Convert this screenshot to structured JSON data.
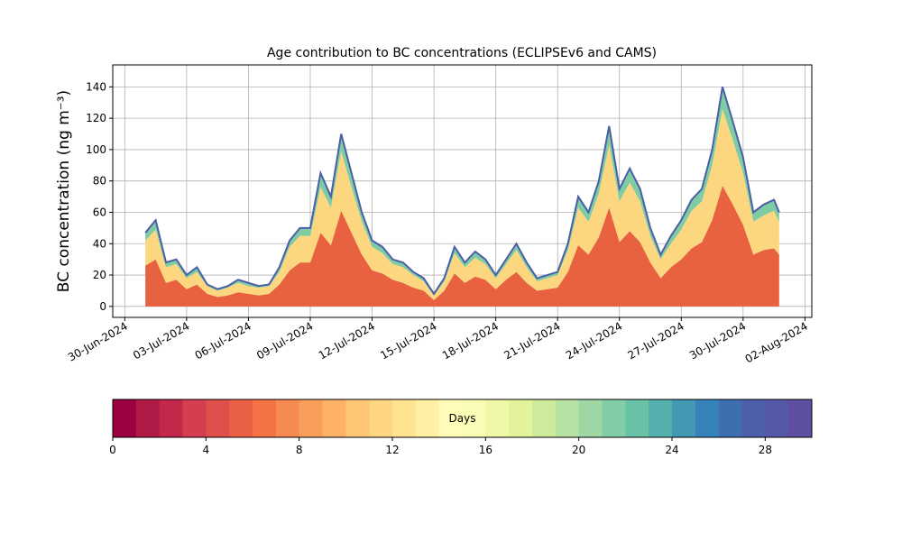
{
  "chart_data": {
    "type": "stacked_area",
    "title": "Age contribution to BC concentrations (ECLIPSEv6 and CAMS)",
    "y_label": "BC concentration (ng m⁻³)",
    "x": [
      "2024-07-01T00:00",
      "2024-07-01T12:00",
      "2024-07-02T00:00",
      "2024-07-02T12:00",
      "2024-07-03T00:00",
      "2024-07-03T12:00",
      "2024-07-04T00:00",
      "2024-07-04T12:00",
      "2024-07-05T00:00",
      "2024-07-05T12:00",
      "2024-07-06T00:00",
      "2024-07-06T12:00",
      "2024-07-07T00:00",
      "2024-07-07T12:00",
      "2024-07-08T00:00",
      "2024-07-08T12:00",
      "2024-07-09T00:00",
      "2024-07-09T12:00",
      "2024-07-10T00:00",
      "2024-07-10T12:00",
      "2024-07-11T00:00",
      "2024-07-11T12:00",
      "2024-07-12T00:00",
      "2024-07-12T12:00",
      "2024-07-13T00:00",
      "2024-07-13T12:00",
      "2024-07-14T00:00",
      "2024-07-14T12:00",
      "2024-07-15T00:00",
      "2024-07-15T12:00",
      "2024-07-16T00:00",
      "2024-07-16T12:00",
      "2024-07-17T00:00",
      "2024-07-17T12:00",
      "2024-07-18T00:00",
      "2024-07-18T12:00",
      "2024-07-19T00:00",
      "2024-07-19T12:00",
      "2024-07-20T00:00",
      "2024-07-20T12:00",
      "2024-07-21T00:00",
      "2024-07-21T12:00",
      "2024-07-22T00:00",
      "2024-07-22T12:00",
      "2024-07-23T00:00",
      "2024-07-23T12:00",
      "2024-07-24T00:00",
      "2024-07-24T12:00",
      "2024-07-25T00:00",
      "2024-07-25T12:00",
      "2024-07-26T00:00",
      "2024-07-26T12:00",
      "2024-07-27T00:00",
      "2024-07-27T12:00",
      "2024-07-28T00:00",
      "2024-07-28T12:00",
      "2024-07-29T00:00",
      "2024-07-29T12:00",
      "2024-07-30T00:00",
      "2024-07-30T12:00",
      "2024-07-31T00:00",
      "2024-07-31T12:00",
      "2024-07-31T18:00"
    ],
    "series": [
      {
        "color": "#e8623f",
        "values": [
          26,
          30,
          15,
          17,
          11,
          14,
          8,
          6,
          7,
          9,
          8,
          7,
          8,
          14,
          23,
          28,
          28,
          47,
          39,
          61,
          47,
          33,
          23,
          21,
          17,
          15,
          12,
          10,
          4,
          10,
          21,
          15,
          19,
          17,
          11,
          17,
          22,
          15,
          10,
          11,
          12,
          22,
          39,
          33,
          44,
          63,
          41,
          48,
          41,
          28,
          18,
          25,
          30,
          37,
          41,
          55,
          77,
          65,
          52,
          33,
          36,
          37,
          33
        ]
      },
      {
        "color": "#fdd680",
        "values": [
          16,
          19,
          10,
          10,
          7,
          8,
          5,
          4,
          5,
          6,
          5,
          5,
          5,
          8,
          15,
          17,
          17,
          29,
          24,
          38,
          29,
          21,
          15,
          13,
          10,
          10,
          8,
          6,
          3,
          6,
          13,
          10,
          12,
          10,
          7,
          10,
          14,
          10,
          6,
          7,
          8,
          14,
          24,
          21,
          28,
          40,
          26,
          31,
          26,
          17,
          12,
          15,
          19,
          24,
          26,
          35,
          49,
          41,
          33,
          21,
          22,
          24,
          21
        ]
      },
      {
        "color": "#7fcba4",
        "values": [
          5,
          6,
          3,
          3,
          2,
          3,
          1,
          1,
          1,
          2,
          2,
          1,
          1,
          3,
          4,
          5,
          5,
          9,
          7,
          11,
          9,
          6,
          4,
          4,
          3,
          3,
          2,
          2,
          1,
          2,
          4,
          3,
          4,
          3,
          2,
          3,
          4,
          3,
          2,
          2,
          2,
          4,
          7,
          6,
          8,
          12,
          8,
          9,
          8,
          5,
          3,
          5,
          6,
          7,
          8,
          10,
          14,
          12,
          10,
          6,
          7,
          7,
          6
        ]
      }
    ],
    "outline_color": "#4a5fa6",
    "xlim": [
      "2024-06-29T10:00",
      "2024-08-02T08:00"
    ],
    "xticks": [
      {
        "value": "2024-06-30T00:00",
        "label": "30-Jun-2024"
      },
      {
        "value": "2024-07-03T00:00",
        "label": "03-Jul-2024"
      },
      {
        "value": "2024-07-06T00:00",
        "label": "06-Jul-2024"
      },
      {
        "value": "2024-07-09T00:00",
        "label": "09-Jul-2024"
      },
      {
        "value": "2024-07-12T00:00",
        "label": "12-Jul-2024"
      },
      {
        "value": "2024-07-15T00:00",
        "label": "15-Jul-2024"
      },
      {
        "value": "2024-07-18T00:00",
        "label": "18-Jul-2024"
      },
      {
        "value": "2024-07-21T00:00",
        "label": "21-Jul-2024"
      },
      {
        "value": "2024-07-24T00:00",
        "label": "24-Jul-2024"
      },
      {
        "value": "2024-07-27T00:00",
        "label": "27-Jul-2024"
      },
      {
        "value": "2024-07-30T00:00",
        "label": "30-Jul-2024"
      },
      {
        "value": "2024-08-02T00:00",
        "label": "02-Aug-2024"
      }
    ],
    "ylim": [
      -7,
      154
    ],
    "yticks": [
      0,
      20,
      40,
      60,
      80,
      100,
      120,
      140
    ],
    "grid": true,
    "colorbar": {
      "label": "Days",
      "lim": [
        0,
        30
      ],
      "ticks": [
        0,
        4,
        8,
        12,
        16,
        20,
        24,
        28
      ],
      "colors": [
        "#9e0142",
        "#b01a46",
        "#c3284a",
        "#d53e4f",
        "#e04f4a",
        "#ea6044",
        "#f47245",
        "#f68b52",
        "#f99f5c",
        "#fdb266",
        "#fdc574",
        "#fed582",
        "#fee391",
        "#fff0a6",
        "#fefcb7",
        "#f8fcb4",
        "#eef8a7",
        "#e2f399",
        "#cceb9d",
        "#b5e1a2",
        "#9dd7a4",
        "#82cda5",
        "#69c2a5",
        "#56afac",
        "#4498b3",
        "#3683bb",
        "#3f6eb0",
        "#4c5fa8",
        "#5558a6",
        "#5e4fa2"
      ]
    }
  }
}
